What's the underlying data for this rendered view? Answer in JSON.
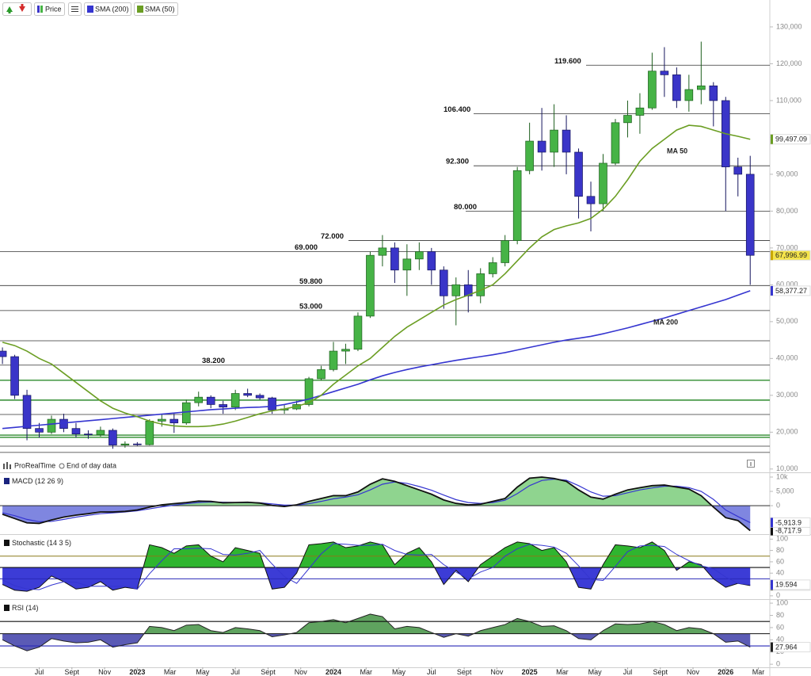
{
  "chart_data": [
    {
      "type": "candlestick",
      "name": "Price",
      "x": [
        3.75,
        4.5,
        5.25,
        6,
        6.75,
        7.5,
        8.25,
        9,
        9.75,
        10.5,
        11.25,
        12,
        12.75,
        13.5,
        14.25,
        15,
        15.75,
        16.5,
        17.25,
        18,
        18.75,
        19.5,
        20.25,
        21,
        21.75,
        22.5,
        23.25,
        24,
        24.75,
        25.5,
        26.25,
        27,
        27.75,
        28.5,
        29.25,
        30,
        30.75,
        31.5,
        32.25,
        33,
        33.75,
        34.5,
        35.25,
        36,
        36.75,
        37.5,
        38.25,
        39,
        39.75,
        40.5,
        41.25,
        42,
        42.75,
        43.5,
        44.25,
        45,
        45.75,
        46.5,
        47.25,
        48,
        48.75,
        49.5
      ],
      "open": [
        42000,
        40500,
        30000,
        21000,
        20000,
        23500,
        21000,
        19500,
        19300,
        20500,
        16500,
        16800,
        16600,
        23000,
        23500,
        22500,
        28000,
        29500,
        27500,
        26800,
        30500,
        30000,
        29300,
        26000,
        26300,
        27500,
        34500,
        37000,
        42000,
        42500,
        51500,
        68000,
        70000,
        64000,
        67000,
        69000,
        64000,
        57000,
        60000,
        57000,
        63000,
        66000,
        72000,
        91000,
        99000,
        96000,
        102000,
        96000,
        84000,
        82000,
        93000,
        104000,
        106000,
        108000,
        118000,
        117000,
        110000,
        113000,
        114000,
        110000,
        92000,
        90000
      ],
      "high": [
        43000,
        41000,
        31500,
        22500,
        24500,
        25000,
        22500,
        20500,
        21500,
        21000,
        17500,
        17300,
        23500,
        25000,
        25000,
        28800,
        31000,
        30000,
        28500,
        31500,
        31800,
        30500,
        29600,
        27500,
        28500,
        35000,
        38000,
        44500,
        44000,
        52500,
        69000,
        73500,
        71500,
        71000,
        71500,
        70000,
        65000,
        62000,
        64000,
        64500,
        67500,
        73500,
        92000,
        104000,
        108000,
        109000,
        106000,
        97000,
        88000,
        95500,
        105000,
        110000,
        112000,
        123000,
        124500,
        119000,
        117000,
        126000,
        115000,
        111000,
        94500,
        95000
      ],
      "low": [
        38500,
        29000,
        17800,
        18500,
        19500,
        20000,
        18500,
        18200,
        18800,
        15500,
        15800,
        16300,
        16400,
        21500,
        19800,
        22000,
        27000,
        26500,
        25000,
        26000,
        29500,
        28800,
        25000,
        25000,
        26000,
        27000,
        34000,
        36500,
        38500,
        42000,
        51000,
        65000,
        60500,
        57000,
        64000,
        60000,
        53500,
        49000,
        52500,
        55000,
        62000,
        65000,
        71000,
        90000,
        91000,
        92000,
        90000,
        78000,
        74500,
        80000,
        92500,
        100000,
        101000,
        107500,
        111000,
        108000,
        107000,
        109000,
        103000,
        80000,
        84000,
        60000
      ],
      "close": [
        40500,
        30000,
        21000,
        20000,
        23500,
        21000,
        19500,
        19300,
        20500,
        16500,
        16800,
        16600,
        23000,
        23500,
        22500,
        28000,
        29500,
        27500,
        26800,
        30500,
        30000,
        29300,
        26000,
        26300,
        27500,
        34500,
        37000,
        42000,
        42500,
        51500,
        68000,
        70000,
        64000,
        67000,
        69000,
        64000,
        57000,
        60000,
        57000,
        63000,
        66000,
        72000,
        91000,
        99000,
        96000,
        102000,
        96000,
        84000,
        82000,
        93000,
        104000,
        106000,
        108000,
        118000,
        117000,
        110000,
        113000,
        114000,
        110000,
        92000,
        90000,
        67996.99
      ],
      "up_color": "#46b346",
      "down_color": "#3a35c8",
      "close_tag": {
        "value": 67996.99,
        "label": "67,996.99"
      },
      "series": [
        {
          "name": "SMA (200)",
          "color": "#3535d0",
          "values": [
            21000,
            21300,
            21600,
            21900,
            22200,
            22500,
            22800,
            23100,
            23400,
            23700,
            24000,
            24300,
            24600,
            24900,
            25200,
            25500,
            25800,
            26100,
            26300,
            26500,
            26700,
            26800,
            27000,
            27500,
            28200,
            29000,
            30000,
            31000,
            32000,
            33000,
            34200,
            35300,
            36200,
            37000,
            37700,
            38300,
            38900,
            39500,
            40000,
            40500,
            41000,
            41600,
            42300,
            43000,
            43700,
            44400,
            45000,
            45500,
            46000,
            46700,
            47500,
            48300,
            49200,
            50100,
            51000,
            52000,
            53000,
            54000,
            55000,
            56000,
            57200,
            58377.27
          ],
          "tag": {
            "value": 58377.27,
            "label": "58,377.27"
          }
        },
        {
          "name": "SMA (50)",
          "color": "#6b9e23",
          "values": [
            44400,
            43500,
            42000,
            40000,
            38500,
            36000,
            33500,
            31000,
            28500,
            26500,
            25200,
            24200,
            23000,
            22200,
            21700,
            21500,
            21500,
            21700,
            22200,
            23000,
            24000,
            25000,
            25800,
            26300,
            27000,
            28000,
            30000,
            33000,
            35500,
            38000,
            40000,
            43000,
            46000,
            48500,
            50500,
            52500,
            54500,
            56000,
            57200,
            58500,
            60000,
            63000,
            66500,
            70000,
            73000,
            75000,
            76000,
            76800,
            78000,
            80500,
            84000,
            88500,
            93500,
            97000,
            99500,
            102000,
            103300,
            103000,
            102000,
            101000,
            100300,
            99497.09
          ],
          "tag": {
            "value": 99497.09,
            "label": "99,497.09"
          }
        }
      ],
      "annotations": [
        {
          "text": "MA 50",
          "color": "#d62828"
        },
        {
          "text": "MA 200",
          "color": "#3535d0"
        }
      ],
      "levels": [
        119600,
        106400,
        92300,
        80000,
        72000,
        69000,
        59800,
        53000,
        44800,
        38200,
        34100,
        28700,
        24800,
        19200,
        18600,
        16200,
        14500
      ],
      "level_labels": [
        "119.600",
        "106.400",
        "92.300",
        "80.000",
        "72.000",
        "69.000",
        "59.800",
        "53.000",
        null,
        "38.200",
        null,
        null,
        null,
        null,
        null,
        null,
        null
      ],
      "level_colors": [
        "#333",
        "#333",
        "#333",
        "#333",
        "#333",
        "#333",
        "#333",
        "#333",
        "#333",
        "#333",
        "#2e8b2e",
        "#2e8b2e",
        "#333",
        "#2e8b2e",
        "#2e8b2e",
        "#333",
        "#333"
      ],
      "xlim": [
        3.6,
        50.7
      ],
      "xticks": [
        {
          "value": 6,
          "label": "Jul"
        },
        {
          "value": 8,
          "label": "Sept"
        },
        {
          "value": 10,
          "label": "Nov"
        },
        {
          "value": 12,
          "label": "2023"
        },
        {
          "value": 14,
          "label": "Mar"
        },
        {
          "value": 16,
          "label": "May"
        },
        {
          "value": 18,
          "label": "Jul"
        },
        {
          "value": 20,
          "label": "Sept"
        },
        {
          "value": 22,
          "label": "Nov"
        },
        {
          "value": 24,
          "label": "2024"
        },
        {
          "value": 26,
          "label": "Mar"
        },
        {
          "value": 28,
          "label": "May"
        },
        {
          "value": 30,
          "label": "Jul"
        },
        {
          "value": 32,
          "label": "Sept"
        },
        {
          "value": 34,
          "label": "Nov"
        },
        {
          "value": 36,
          "label": "2025"
        },
        {
          "value": 38,
          "label": "Mar"
        },
        {
          "value": 40,
          "label": "May"
        },
        {
          "value": 42,
          "label": "Jul"
        },
        {
          "value": 44,
          "label": "Sept"
        },
        {
          "value": 46,
          "label": "Nov"
        },
        {
          "value": 48,
          "label": "2026"
        },
        {
          "value": 50,
          "label": "Mar"
        }
      ],
      "ylim": [
        9100,
        137300
      ],
      "yticks": [
        {
          "value": 10000,
          "label": "10,000"
        },
        {
          "value": 20000,
          "label": "20,000"
        },
        {
          "value": 30000,
          "label": "30,000"
        },
        {
          "value": 40000,
          "label": "40,000"
        },
        {
          "value": 50000,
          "label": "50,000"
        },
        {
          "value": 60000,
          "label": "60,000"
        },
        {
          "value": 70000,
          "label": "70,000"
        },
        {
          "value": 80000,
          "label": "80,000"
        },
        {
          "value": 90000,
          "label": "90,000"
        },
        {
          "value": 100000,
          "label": "100,000"
        },
        {
          "value": 110000,
          "label": "110,000"
        },
        {
          "value": 120000,
          "label": "120,000"
        },
        {
          "value": 130000,
          "label": "130,000"
        }
      ],
      "footer": {
        "brand": "ProRealTime",
        "note": "End of day data"
      }
    },
    {
      "type": "macd",
      "title": "MACD (12 26 9)",
      "title_color": "#1a237e",
      "ylim": [
        -9400,
        11100
      ],
      "yticks": [
        0,
        {
          "value": 5000,
          "label": "5,000"
        },
        {
          "value": 10000,
          "label": "10k"
        }
      ],
      "series": [
        {
          "color": "#111111",
          "values": [
            -3000,
            -4500,
            -6000,
            -6200,
            -5000,
            -4000,
            -3300,
            -2800,
            -2200,
            -2200,
            -2000,
            -1500,
            -500,
            300,
            700,
            1100,
            1600,
            1500,
            1000,
            1100,
            1200,
            900,
            100,
            -300,
            300,
            1500,
            2500,
            3500,
            3500,
            4800,
            7500,
            9400,
            8500,
            7000,
            5500,
            4000,
            2000,
            800,
            300,
            500,
            1500,
            2500,
            6500,
            9600,
            10000,
            9500,
            8500,
            5500,
            3000,
            2300,
            4000,
            5500,
            6300,
            7000,
            7200,
            6500,
            5800,
            3500,
            -500,
            -4200,
            -5200,
            -8717.9
          ],
          "tag": {
            "value": -8717.9,
            "label": "-8,717.9"
          }
        },
        {
          "color": "#3535d0",
          "values": [
            -2500,
            -3500,
            -4800,
            -5600,
            -5500,
            -4800,
            -4000,
            -3400,
            -2800,
            -2500,
            -2200,
            -1800,
            -1100,
            -400,
            200,
            700,
            1100,
            1300,
            1200,
            1100,
            1100,
            1000,
            600,
            200,
            200,
            700,
            1500,
            2400,
            3000,
            3800,
            5500,
            7500,
            8300,
            7800,
            6700,
            5400,
            3700,
            2100,
            1100,
            800,
            1100,
            1900,
            4200,
            7000,
            8800,
            9300,
            8900,
            7000,
            4800,
            3300,
            3500,
            4500,
            5500,
            6200,
            6800,
            6800,
            6300,
            5000,
            2200,
            -1500,
            -3800,
            -5913.9
          ],
          "tag": {
            "value": -5913.9,
            "label": "-5,913.9"
          }
        }
      ],
      "fill_colors": [
        "#8fd48f",
        "#7f86e0"
      ]
    },
    {
      "type": "oscillator",
      "title": "Stochastic (14 3 5)",
      "title_color": "#111",
      "ylim": [
        -3,
        106
      ],
      "yticks": [
        0,
        20,
        40,
        60,
        80,
        100
      ],
      "levels": [
        70,
        50,
        30
      ],
      "level_colors": [
        "#8a7a1a",
        "#111",
        "#2a2ab8"
      ],
      "series": [
        {
          "color": "#111111",
          "values": [
            20,
            10,
            8,
            15,
            35,
            25,
            12,
            15,
            25,
            10,
            15,
            12,
            90,
            85,
            75,
            88,
            90,
            70,
            60,
            85,
            80,
            75,
            12,
            15,
            40,
            90,
            92,
            95,
            85,
            88,
            95,
            90,
            55,
            75,
            85,
            60,
            20,
            45,
            25,
            55,
            70,
            85,
            95,
            92,
            80,
            85,
            60,
            15,
            12,
            55,
            90,
            88,
            85,
            95,
            80,
            45,
            60,
            55,
            30,
            15,
            22,
            18.122
          ],
          "tag": {
            "value": 18.122,
            "label": "18.122"
          }
        },
        {
          "color": "#3535d0",
          "values": [
            28,
            18,
            12,
            11,
            19,
            25,
            24,
            17,
            17,
            17,
            17,
            12,
            39,
            62,
            83,
            83,
            84,
            83,
            73,
            72,
            75,
            80,
            56,
            34,
            22,
            48,
            74,
            92,
            91,
            89,
            89,
            91,
            80,
            73,
            72,
            73,
            55,
            42,
            30,
            42,
            50,
            70,
            83,
            91,
            89,
            86,
            75,
            53,
            29,
            27,
            52,
            78,
            88,
            89,
            87,
            73,
            62,
            53,
            48,
            33,
            22,
            19.594
          ],
          "tag": {
            "value": 19.594,
            "label": "19.594"
          }
        }
      ],
      "fill_colors": [
        "#2fb52f",
        "#3c3cd6"
      ]
    },
    {
      "type": "oscillator",
      "title": "RSI (14)",
      "title_color": "#111",
      "ylim": [
        -5,
        104
      ],
      "yticks": [
        0,
        20,
        40,
        60,
        80,
        100
      ],
      "levels": [
        70,
        50,
        30
      ],
      "level_colors": [
        "#111",
        "#111",
        "#2a2ab8"
      ],
      "series": [
        {
          "color": "#222222",
          "values": [
            40,
            30,
            22,
            28,
            42,
            38,
            35,
            36,
            40,
            28,
            32,
            35,
            62,
            60,
            55,
            64,
            65,
            55,
            52,
            60,
            58,
            55,
            45,
            48,
            52,
            68,
            70,
            73,
            68,
            75,
            82,
            78,
            58,
            62,
            60,
            52,
            44,
            50,
            46,
            55,
            60,
            65,
            75,
            70,
            62,
            63,
            55,
            42,
            40,
            55,
            66,
            65,
            66,
            70,
            65,
            55,
            60,
            58,
            50,
            36,
            38,
            27.964
          ],
          "tag": {
            "value": 27.964,
            "label": "27.964"
          }
        }
      ],
      "fill_colors": [
        "#5fa35f",
        "#5b5bb5"
      ]
    }
  ]
}
